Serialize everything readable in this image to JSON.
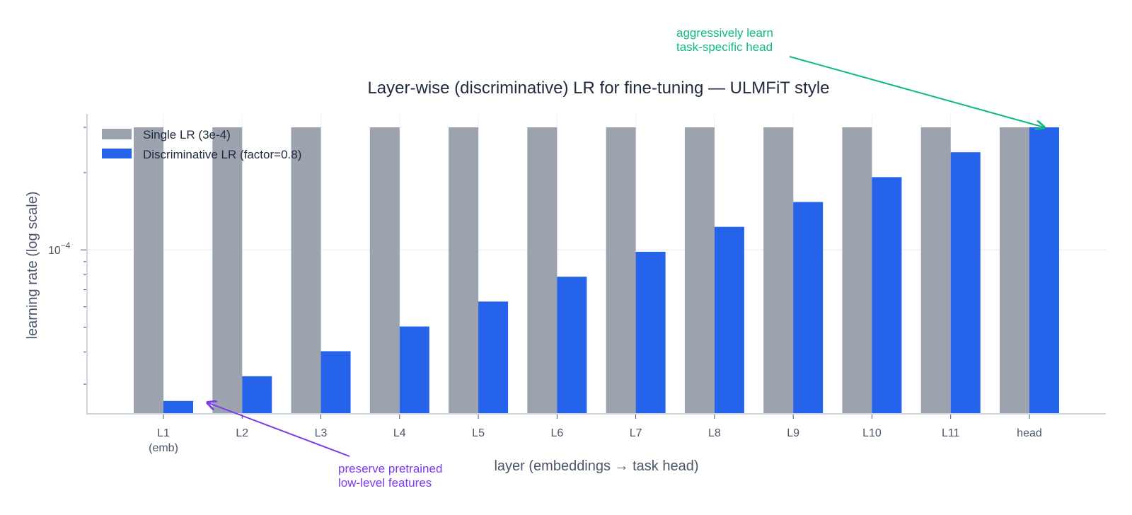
{
  "chart_data": {
    "type": "bar",
    "title": "Layer-wise (discriminative) LR for fine-tuning — ULMFiT style",
    "xlabel": "layer (embeddings → task head)",
    "ylabel": "learning rate (log scale)",
    "yscale": "log",
    "ylim": [
      2.3e-05,
      0.00035
    ],
    "ytick_labels": [
      {
        "value": 0.0001,
        "label": "10",
        "exp": "−4"
      }
    ],
    "grid": true,
    "legend_position": "top-left",
    "categories": [
      "L1\n(emb)",
      "L2",
      "L3",
      "L4",
      "L5",
      "L6",
      "L7",
      "L8",
      "L9",
      "L10",
      "L11",
      "head"
    ],
    "category_labels": [
      {
        "line1": "L1",
        "line2": "(emb)"
      },
      {
        "line1": "L2"
      },
      {
        "line1": "L3"
      },
      {
        "line1": "L4"
      },
      {
        "line1": "L5"
      },
      {
        "line1": "L6"
      },
      {
        "line1": "L7"
      },
      {
        "line1": "L8"
      },
      {
        "line1": "L9"
      },
      {
        "line1": "L10"
      },
      {
        "line1": "L11"
      },
      {
        "line1": "head"
      }
    ],
    "series": [
      {
        "name": "Single LR (3e-4)",
        "color": "#9ca3af",
        "values": [
          0.0003,
          0.0003,
          0.0003,
          0.0003,
          0.0003,
          0.0003,
          0.0003,
          0.0003,
          0.0003,
          0.0003,
          0.0003,
          0.0003
        ]
      },
      {
        "name": "Discriminative LR (factor=0.8)",
        "color": "#2563eb",
        "values": [
          2.58e-05,
          3.22e-05,
          4.03e-05,
          5.03e-05,
          6.29e-05,
          7.86e-05,
          9.83e-05,
          0.0001229,
          0.0001536,
          0.000192,
          0.00024,
          0.0003
        ]
      }
    ],
    "annotations": [
      {
        "text_lines": [
          "aggressively learn",
          "task-specific head"
        ],
        "color": "#10b981",
        "target": "head"
      },
      {
        "text_lines": [
          "preserve pretrained",
          "low-level features"
        ],
        "color": "#7c3aed",
        "target": "L1\n(emb)"
      }
    ]
  }
}
